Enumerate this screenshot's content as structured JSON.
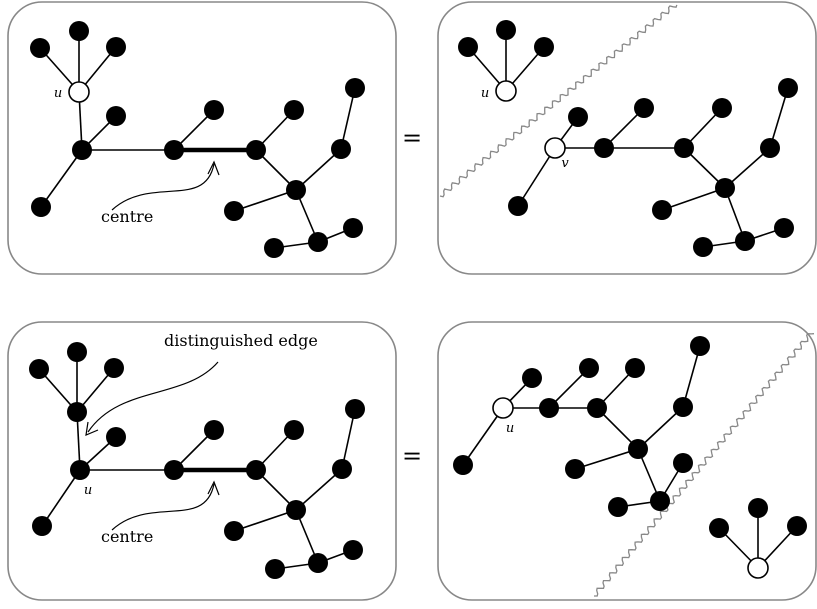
{
  "panels": [
    {
      "id": "top-left",
      "vertex_labels": [
        "u"
      ],
      "annotations": [
        "centre"
      ]
    },
    {
      "id": "top-right",
      "vertex_labels": [
        "u",
        "v"
      ],
      "annotations": []
    },
    {
      "id": "bottom-left",
      "vertex_labels": [
        "u"
      ],
      "annotations": [
        "distinguished edge",
        "centre"
      ]
    },
    {
      "id": "bottom-right",
      "vertex_labels": [
        "u"
      ],
      "annotations": []
    }
  ],
  "equals_signs": [
    "=",
    "="
  ],
  "colors": {
    "filled_vertex": "#000000",
    "hollow_vertex": "#ffffff",
    "panel_border": "#888888",
    "edge": "#000000"
  }
}
